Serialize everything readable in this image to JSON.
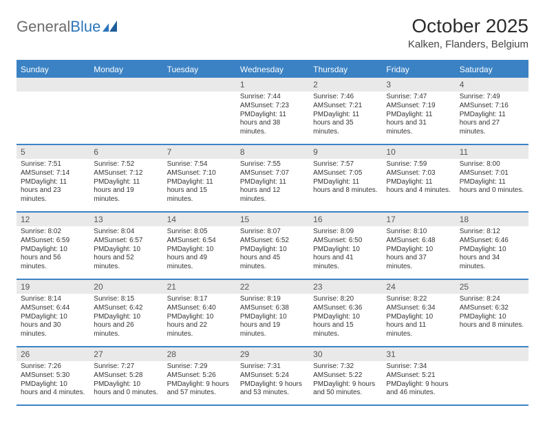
{
  "logo": {
    "word1": "General",
    "word2": "Blue"
  },
  "title": "October 2025",
  "location": "Kalken, Flanders, Belgium",
  "colors": {
    "header_bar": "#3b82c4",
    "daynum_bg": "#e9e9e9",
    "rule": "#3b82c4",
    "text": "#333333",
    "logo_gray": "#6b6b6b",
    "logo_blue": "#2a75bb"
  },
  "weekdays": [
    "Sunday",
    "Monday",
    "Tuesday",
    "Wednesday",
    "Thursday",
    "Friday",
    "Saturday"
  ],
  "weeks": [
    [
      null,
      null,
      null,
      {
        "n": "1",
        "sr": "7:44 AM",
        "ss": "7:23 PM",
        "dl": "11 hours and 38 minutes."
      },
      {
        "n": "2",
        "sr": "7:46 AM",
        "ss": "7:21 PM",
        "dl": "11 hours and 35 minutes."
      },
      {
        "n": "3",
        "sr": "7:47 AM",
        "ss": "7:19 PM",
        "dl": "11 hours and 31 minutes."
      },
      {
        "n": "4",
        "sr": "7:49 AM",
        "ss": "7:16 PM",
        "dl": "11 hours and 27 minutes."
      }
    ],
    [
      {
        "n": "5",
        "sr": "7:51 AM",
        "ss": "7:14 PM",
        "dl": "11 hours and 23 minutes."
      },
      {
        "n": "6",
        "sr": "7:52 AM",
        "ss": "7:12 PM",
        "dl": "11 hours and 19 minutes."
      },
      {
        "n": "7",
        "sr": "7:54 AM",
        "ss": "7:10 PM",
        "dl": "11 hours and 15 minutes."
      },
      {
        "n": "8",
        "sr": "7:55 AM",
        "ss": "7:07 PM",
        "dl": "11 hours and 12 minutes."
      },
      {
        "n": "9",
        "sr": "7:57 AM",
        "ss": "7:05 PM",
        "dl": "11 hours and 8 minutes."
      },
      {
        "n": "10",
        "sr": "7:59 AM",
        "ss": "7:03 PM",
        "dl": "11 hours and 4 minutes."
      },
      {
        "n": "11",
        "sr": "8:00 AM",
        "ss": "7:01 PM",
        "dl": "11 hours and 0 minutes."
      }
    ],
    [
      {
        "n": "12",
        "sr": "8:02 AM",
        "ss": "6:59 PM",
        "dl": "10 hours and 56 minutes."
      },
      {
        "n": "13",
        "sr": "8:04 AM",
        "ss": "6:57 PM",
        "dl": "10 hours and 52 minutes."
      },
      {
        "n": "14",
        "sr": "8:05 AM",
        "ss": "6:54 PM",
        "dl": "10 hours and 49 minutes."
      },
      {
        "n": "15",
        "sr": "8:07 AM",
        "ss": "6:52 PM",
        "dl": "10 hours and 45 minutes."
      },
      {
        "n": "16",
        "sr": "8:09 AM",
        "ss": "6:50 PM",
        "dl": "10 hours and 41 minutes."
      },
      {
        "n": "17",
        "sr": "8:10 AM",
        "ss": "6:48 PM",
        "dl": "10 hours and 37 minutes."
      },
      {
        "n": "18",
        "sr": "8:12 AM",
        "ss": "6:46 PM",
        "dl": "10 hours and 34 minutes."
      }
    ],
    [
      {
        "n": "19",
        "sr": "8:14 AM",
        "ss": "6:44 PM",
        "dl": "10 hours and 30 minutes."
      },
      {
        "n": "20",
        "sr": "8:15 AM",
        "ss": "6:42 PM",
        "dl": "10 hours and 26 minutes."
      },
      {
        "n": "21",
        "sr": "8:17 AM",
        "ss": "6:40 PM",
        "dl": "10 hours and 22 minutes."
      },
      {
        "n": "22",
        "sr": "8:19 AM",
        "ss": "6:38 PM",
        "dl": "10 hours and 19 minutes."
      },
      {
        "n": "23",
        "sr": "8:20 AM",
        "ss": "6:36 PM",
        "dl": "10 hours and 15 minutes."
      },
      {
        "n": "24",
        "sr": "8:22 AM",
        "ss": "6:34 PM",
        "dl": "10 hours and 11 minutes."
      },
      {
        "n": "25",
        "sr": "8:24 AM",
        "ss": "6:32 PM",
        "dl": "10 hours and 8 minutes."
      }
    ],
    [
      {
        "n": "26",
        "sr": "7:26 AM",
        "ss": "5:30 PM",
        "dl": "10 hours and 4 minutes."
      },
      {
        "n": "27",
        "sr": "7:27 AM",
        "ss": "5:28 PM",
        "dl": "10 hours and 0 minutes."
      },
      {
        "n": "28",
        "sr": "7:29 AM",
        "ss": "5:26 PM",
        "dl": "9 hours and 57 minutes."
      },
      {
        "n": "29",
        "sr": "7:31 AM",
        "ss": "5:24 PM",
        "dl": "9 hours and 53 minutes."
      },
      {
        "n": "30",
        "sr": "7:32 AM",
        "ss": "5:22 PM",
        "dl": "9 hours and 50 minutes."
      },
      {
        "n": "31",
        "sr": "7:34 AM",
        "ss": "5:21 PM",
        "dl": "9 hours and 46 minutes."
      },
      null
    ]
  ],
  "labels": {
    "sunrise": "Sunrise: ",
    "sunset": "Sunset: ",
    "daylight": "Daylight: "
  }
}
